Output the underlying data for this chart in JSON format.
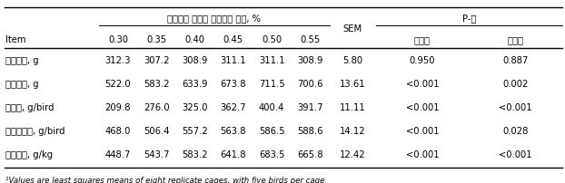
{
  "header_span_text": "표준회장 가소화 메티오닌 함량, %",
  "p_header": "P-값",
  "sem_header": "SEM",
  "col_labels": [
    "0.30",
    "0.35",
    "0.40",
    "0.45",
    "0.50",
    "0.55"
  ],
  "sub_headers": [
    "직선적",
    "곡선적"
  ],
  "item_label": "Item",
  "rows": [
    [
      "개시체중, g",
      "312.3",
      "307.2",
      "308.9",
      "311.1",
      "311.1",
      "308.9",
      "5.80",
      "0.950",
      "0.887"
    ],
    [
      "종료체중, g",
      "522.0",
      "583.2",
      "633.9",
      "673.8",
      "711.5",
      "700.6",
      "13.61",
      "<0.001",
      "0.002"
    ],
    [
      "증체량, g/bird",
      "209.8",
      "276.0",
      "325.0",
      "362.7",
      "400.4",
      "391.7",
      "11.11",
      "<0.001",
      "<0.001"
    ],
    [
      "사료섭취량, g/bird",
      "468.0",
      "506.4",
      "557.2",
      "563.8",
      "586.5",
      "588.6",
      "14.12",
      "<0.001",
      "0.028"
    ],
    [
      "사료효율, g/kg",
      "448.7",
      "543.7",
      "583.2",
      "641.8",
      "683.5",
      "665.8",
      "12.42",
      "<0.001",
      "<0.001"
    ]
  ],
  "footnote": "¹Values are least squares means of eight replicate cages, with five birds per cage.",
  "bg_color": "#ffffff",
  "line_color": "#000000"
}
